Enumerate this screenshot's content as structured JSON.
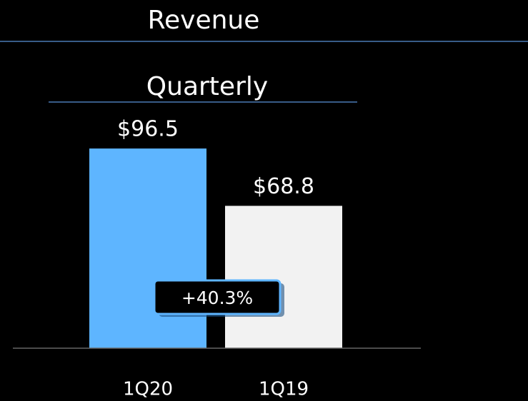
{
  "chart_data": {
    "type": "bar",
    "title": "Revenue",
    "subtitle": "Quarterly",
    "categories": [
      "1Q20",
      "1Q19"
    ],
    "values": [
      96.5,
      68.8
    ],
    "value_labels": [
      "$96.5",
      "$68.8"
    ],
    "colors": [
      "#5eb5ff",
      "#f2f2f2"
    ],
    "annotation": "+40.3%"
  }
}
